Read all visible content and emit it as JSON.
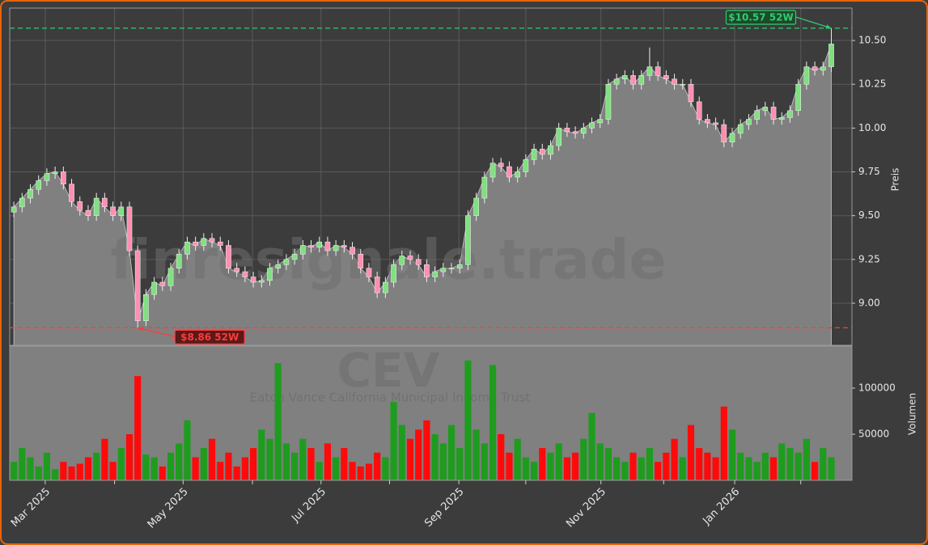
{
  "chart_data": {
    "type": "candlestick",
    "watermark": "finresignale.trade",
    "symbol": "CEV",
    "name": "Eaton Vance California Municipal Income Trust",
    "ylabel": "Preis",
    "y2label": "Volumen",
    "open": [
      9.52,
      9.55,
      9.6,
      9.65,
      9.7,
      9.74,
      9.75,
      9.68,
      9.58,
      9.53,
      9.5,
      9.6,
      9.55,
      9.5,
      9.55,
      9.3,
      8.9,
      9.05,
      9.12,
      9.1,
      9.2,
      9.28,
      9.35,
      9.33,
      9.37,
      9.35,
      9.33,
      9.2,
      9.18,
      9.15,
      9.12,
      9.13,
      9.2,
      9.22,
      9.25,
      9.28,
      9.33,
      9.32,
      9.35,
      9.3,
      9.33,
      9.32,
      9.28,
      9.2,
      9.15,
      9.06,
      9.12,
      9.22,
      9.27,
      9.25,
      9.22,
      9.15,
      9.18,
      9.2,
      9.2,
      9.22,
      9.5,
      9.6,
      9.72,
      9.8,
      9.78,
      9.72,
      9.75,
      9.82,
      9.88,
      9.85,
      9.9,
      10.0,
      9.98,
      9.97,
      10.0,
      10.03,
      10.05,
      10.25,
      10.28,
      10.3,
      10.25,
      10.3,
      10.35,
      10.3,
      10.28,
      10.25,
      10.25,
      10.15,
      10.05,
      10.03,
      10.02,
      9.92,
      9.97,
      10.02,
      10.05,
      10.1,
      10.12,
      10.05,
      10.06,
      10.1,
      10.25,
      10.35,
      10.33,
      10.35
    ],
    "high": [
      9.58,
      9.63,
      9.68,
      9.73,
      9.77,
      9.78,
      9.78,
      9.71,
      9.61,
      9.56,
      9.63,
      9.63,
      9.58,
      9.58,
      9.58,
      9.33,
      9.08,
      9.15,
      9.15,
      9.23,
      9.31,
      9.38,
      9.38,
      9.4,
      9.4,
      9.38,
      9.36,
      9.23,
      9.21,
      9.18,
      9.16,
      9.23,
      9.25,
      9.28,
      9.31,
      9.36,
      9.36,
      9.38,
      9.38,
      9.36,
      9.36,
      9.35,
      9.31,
      9.23,
      9.18,
      9.15,
      9.25,
      9.3,
      9.3,
      9.28,
      9.25,
      9.21,
      9.23,
      9.23,
      9.25,
      9.53,
      9.63,
      9.75,
      9.83,
      9.83,
      9.81,
      9.78,
      9.85,
      9.91,
      9.91,
      9.93,
      10.03,
      10.03,
      10.01,
      10.03,
      10.06,
      10.08,
      10.28,
      10.31,
      10.33,
      10.33,
      10.33,
      10.46,
      10.38,
      10.33,
      10.31,
      10.28,
      10.28,
      10.18,
      10.08,
      10.06,
      10.05,
      10.0,
      10.05,
      10.08,
      10.13,
      10.15,
      10.15,
      10.09,
      10.13,
      10.28,
      10.38,
      10.38,
      10.38,
      10.57
    ],
    "low": [
      9.49,
      9.52,
      9.57,
      9.62,
      9.67,
      9.71,
      9.65,
      9.55,
      9.5,
      9.47,
      9.47,
      9.52,
      9.47,
      9.47,
      9.27,
      8.86,
      8.87,
      9.02,
      9.07,
      9.07,
      9.17,
      9.25,
      9.3,
      9.3,
      9.32,
      9.3,
      9.17,
      9.15,
      9.12,
      9.09,
      9.09,
      9.1,
      9.17,
      9.19,
      9.22,
      9.25,
      9.29,
      9.29,
      9.27,
      9.27,
      9.29,
      9.25,
      9.17,
      9.12,
      9.03,
      9.03,
      9.09,
      9.19,
      9.22,
      9.19,
      9.12,
      9.12,
      9.15,
      9.17,
      9.17,
      9.19,
      9.47,
      9.57,
      9.69,
      9.75,
      9.69,
      9.69,
      9.72,
      9.79,
      9.82,
      9.82,
      9.87,
      9.95,
      9.94,
      9.94,
      9.97,
      10.0,
      10.02,
      10.22,
      10.25,
      10.22,
      10.22,
      10.27,
      10.27,
      10.25,
      10.22,
      10.22,
      10.12,
      10.02,
      10.0,
      9.99,
      9.89,
      9.89,
      9.94,
      9.99,
      10.02,
      10.07,
      10.02,
      10.02,
      10.03,
      10.07,
      10.22,
      10.3,
      10.3,
      10.32
    ],
    "close": [
      9.55,
      9.6,
      9.65,
      9.7,
      9.74,
      9.75,
      9.68,
      9.58,
      9.53,
      9.5,
      9.6,
      9.55,
      9.5,
      9.55,
      9.3,
      8.9,
      9.05,
      9.12,
      9.1,
      9.2,
      9.28,
      9.35,
      9.33,
      9.37,
      9.35,
      9.33,
      9.2,
      9.18,
      9.15,
      9.12,
      9.13,
      9.2,
      9.22,
      9.25,
      9.28,
      9.33,
      9.32,
      9.35,
      9.3,
      9.33,
      9.32,
      9.28,
      9.2,
      9.15,
      9.06,
      9.12,
      9.22,
      9.27,
      9.25,
      9.22,
      9.15,
      9.18,
      9.2,
      9.2,
      9.22,
      9.5,
      9.6,
      9.72,
      9.8,
      9.78,
      9.72,
      9.75,
      9.82,
      9.88,
      9.85,
      9.9,
      10.0,
      9.98,
      9.97,
      10.0,
      10.03,
      10.05,
      10.25,
      10.28,
      10.3,
      10.25,
      10.3,
      10.35,
      10.3,
      10.28,
      10.25,
      10.25,
      10.15,
      10.05,
      10.03,
      10.02,
      9.92,
      9.97,
      10.02,
      10.05,
      10.1,
      10.12,
      10.05,
      10.06,
      10.1,
      10.25,
      10.35,
      10.33,
      10.35,
      10.48
    ],
    "volume": [
      20000,
      35000,
      25000,
      15000,
      30000,
      12000,
      20000,
      15000,
      18000,
      25000,
      30000,
      45000,
      20000,
      35000,
      50000,
      113000,
      28000,
      25000,
      15000,
      30000,
      40000,
      65000,
      25000,
      35000,
      45000,
      20000,
      30000,
      15000,
      25000,
      35000,
      55000,
      45000,
      127000,
      40000,
      30000,
      45000,
      35000,
      20000,
      40000,
      25000,
      35000,
      20000,
      15000,
      18000,
      30000,
      25000,
      85000,
      60000,
      45000,
      55000,
      65000,
      50000,
      40000,
      60000,
      35000,
      130000,
      55000,
      40000,
      125000,
      50000,
      30000,
      45000,
      25000,
      20000,
      35000,
      30000,
      40000,
      25000,
      30000,
      45000,
      73000,
      40000,
      35000,
      25000,
      20000,
      30000,
      25000,
      35000,
      20000,
      30000,
      45000,
      25000,
      60000,
      35000,
      30000,
      25000,
      80000,
      55000,
      30000,
      25000,
      20000,
      30000,
      25000,
      40000,
      35000,
      30000,
      45000,
      20000,
      35000,
      25000
    ],
    "up_color": "#7fe07f",
    "down_color": "#ff8fb0",
    "volume_up_color": "#1e9c1e",
    "volume_down_color": "#ff0a0a",
    "area_color": "#808080",
    "xlim": [
      -0.5,
      101.5
    ],
    "xticks": [
      {
        "value": 3.8,
        "label": "Mar 2025"
      },
      {
        "value": 20.5,
        "label": "May 2025"
      },
      {
        "value": 37.2,
        "label": "Jul 2025"
      },
      {
        "value": 53.9,
        "label": "Sep 2025"
      },
      {
        "value": 71.1,
        "label": "Nov 2025"
      },
      {
        "value": 87.3,
        "label": "Jan 2026"
      }
    ],
    "xminorticks": [
      12.2,
      28.9,
      45.5,
      62.0,
      78.7,
      95.3
    ],
    "ylim": [
      8.76,
      10.685
    ],
    "yticks": [
      {
        "value": 9,
        "label": "9.00"
      },
      9.25,
      {
        "value": 9.5,
        "label": "9.50"
      },
      9.75,
      {
        "value": 10,
        "label": "10.00"
      },
      10.25,
      {
        "value": 10.5,
        "label": "10.50"
      }
    ],
    "y2lim": [
      0,
      145600
    ],
    "y2ticks": [
      50000,
      100000
    ],
    "grid": true,
    "annotations": [
      {
        "text": "$10.57 52W",
        "value": 10.57,
        "color": "#2ecc71",
        "fill": "#1c4a2a"
      },
      {
        "text": "$8.86 52W",
        "value": 8.86,
        "color": "#ff3b3b",
        "fill": "#5a1a1a"
      }
    ]
  }
}
